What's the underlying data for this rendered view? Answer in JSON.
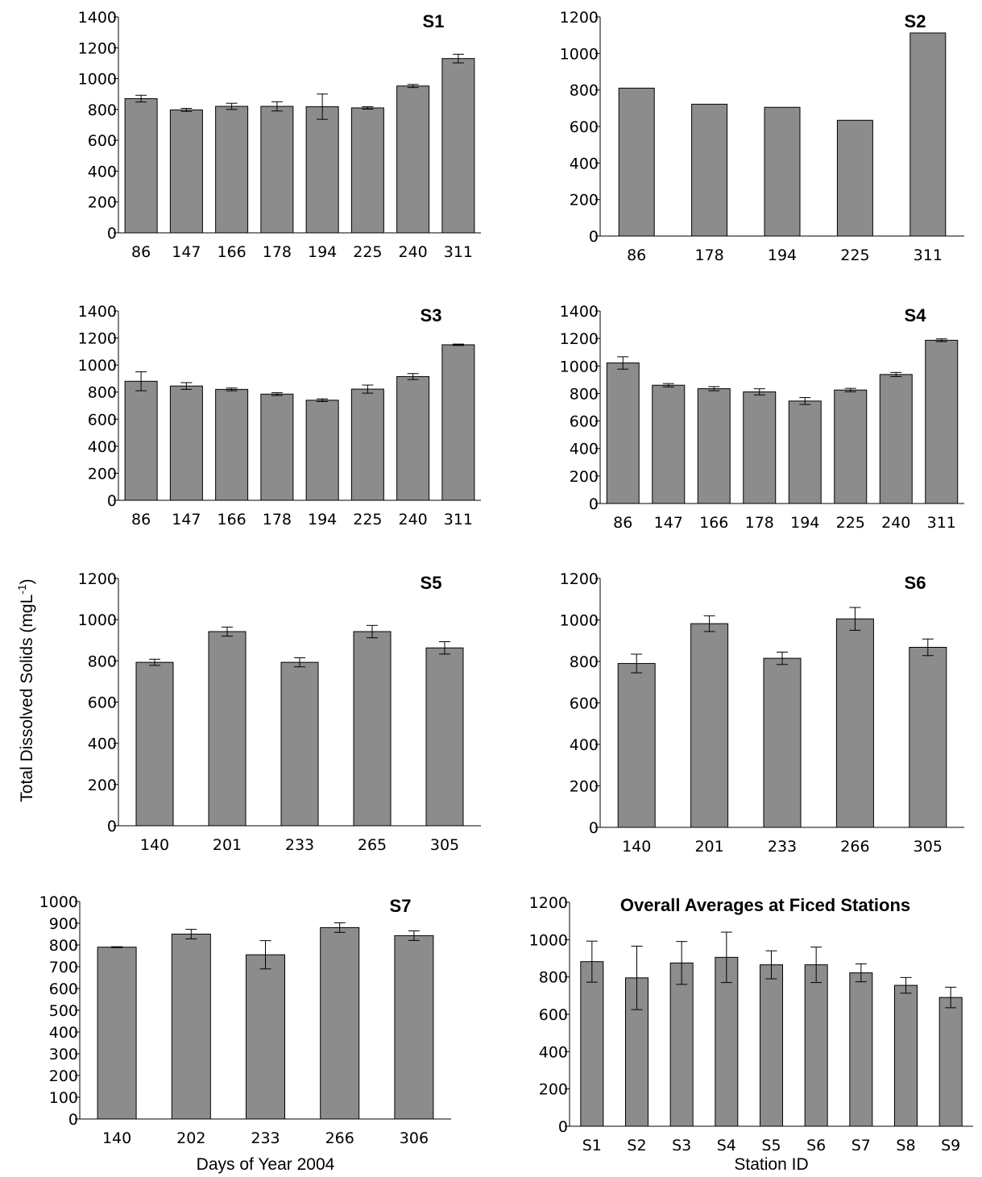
{
  "figure": {
    "ylabel_text": "Total Dissolved Solids  (mgL",
    "ylabel_sup": "-1",
    "ylabel_close": ")"
  },
  "chart_data": [
    {
      "id": "s1",
      "type": "bar",
      "title": "S1",
      "categories": [
        "86",
        "147",
        "166",
        "178",
        "194",
        "225",
        "240",
        "311"
      ],
      "values": [
        870,
        797,
        820,
        820,
        818,
        810,
        952,
        1130
      ],
      "errors": [
        22,
        10,
        20,
        30,
        82,
        8,
        10,
        28
      ],
      "ylim": [
        0,
        1400
      ],
      "yticks": [
        0,
        200,
        400,
        600,
        800,
        1000,
        1200,
        1400
      ],
      "xlabel": "",
      "ylabel": ""
    },
    {
      "id": "s2",
      "type": "bar",
      "title": "S2",
      "categories": [
        "86",
        "178",
        "194",
        "225",
        "311"
      ],
      "values": [
        810,
        722,
        705,
        634,
        1112
      ],
      "errors": [
        0,
        0,
        0,
        0,
        0
      ],
      "ylim": [
        0,
        1200
      ],
      "yticks": [
        0,
        200,
        400,
        600,
        800,
        1000,
        1200
      ],
      "xlabel": "",
      "ylabel": ""
    },
    {
      "id": "s3",
      "type": "bar",
      "title": "S3",
      "categories": [
        "86",
        "147",
        "166",
        "178",
        "194",
        "225",
        "240",
        "311"
      ],
      "values": [
        880,
        845,
        820,
        785,
        740,
        822,
        915,
        1150
      ],
      "errors": [
        70,
        25,
        10,
        10,
        10,
        30,
        22,
        5
      ],
      "ylim": [
        0,
        1400
      ],
      "yticks": [
        0,
        200,
        400,
        600,
        800,
        1000,
        1200,
        1400
      ],
      "xlabel": "",
      "ylabel": ""
    },
    {
      "id": "s4",
      "type": "bar",
      "title": "S4",
      "categories": [
        "86",
        "147",
        "166",
        "178",
        "194",
        "225",
        "240",
        "311"
      ],
      "values": [
        1022,
        860,
        835,
        812,
        745,
        825,
        938,
        1187
      ],
      "errors": [
        45,
        12,
        15,
        22,
        25,
        12,
        15,
        10
      ],
      "ylim": [
        0,
        1400
      ],
      "yticks": [
        0,
        200,
        400,
        600,
        800,
        1000,
        1200,
        1400
      ],
      "xlabel": "",
      "ylabel": ""
    },
    {
      "id": "s5",
      "type": "bar",
      "title": "S5",
      "categories": [
        "140",
        "201",
        "233",
        "265",
        "305"
      ],
      "values": [
        793,
        942,
        793,
        942,
        863
      ],
      "errors": [
        15,
        22,
        22,
        30,
        30
      ],
      "ylim": [
        0,
        1200
      ],
      "yticks": [
        0,
        200,
        400,
        600,
        800,
        1000,
        1200
      ],
      "xlabel": "",
      "ylabel": ""
    },
    {
      "id": "s6",
      "type": "bar",
      "title": "S6",
      "categories": [
        "140",
        "201",
        "233",
        "266",
        "305"
      ],
      "values": [
        790,
        982,
        815,
        1005,
        868
      ],
      "errors": [
        45,
        38,
        30,
        55,
        40
      ],
      "ylim": [
        0,
        1200
      ],
      "yticks": [
        0,
        200,
        400,
        600,
        800,
        1000,
        1200
      ],
      "xlabel": "",
      "ylabel": ""
    },
    {
      "id": "s7",
      "type": "bar",
      "title": "S7",
      "categories": [
        "140",
        "202",
        "233",
        "266",
        "306"
      ],
      "values": [
        790,
        850,
        755,
        880,
        843
      ],
      "errors": [
        2,
        22,
        65,
        22,
        22
      ],
      "ylim": [
        0,
        1000
      ],
      "yticks": [
        0,
        100,
        200,
        300,
        400,
        500,
        600,
        700,
        800,
        900,
        1000
      ],
      "xlabel": "Days of Year 2004",
      "ylabel": ""
    },
    {
      "id": "overall",
      "type": "bar",
      "title": "Overall Averages at Ficed Stations",
      "categories": [
        "S1",
        "S2",
        "S3",
        "S4",
        "S5",
        "S6",
        "S7",
        "S8",
        "S9"
      ],
      "values": [
        882,
        795,
        875,
        905,
        865,
        865,
        822,
        755,
        690
      ],
      "errors": [
        110,
        170,
        115,
        135,
        75,
        95,
        48,
        42,
        55
      ],
      "ylim": [
        0,
        1200
      ],
      "yticks": [
        0,
        200,
        400,
        600,
        800,
        1000,
        1200
      ],
      "xlabel": "Station ID",
      "ylabel": ""
    }
  ]
}
